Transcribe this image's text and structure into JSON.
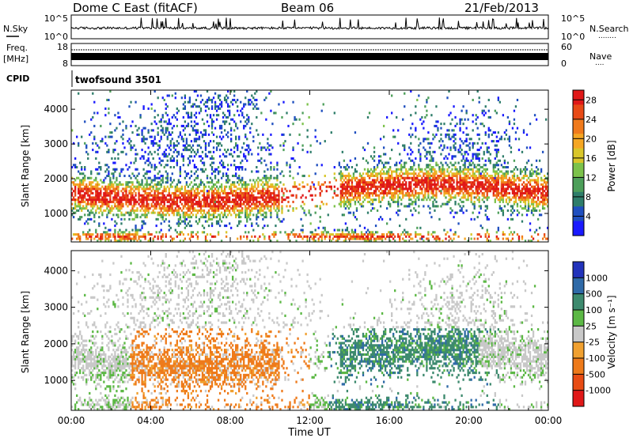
{
  "header": {
    "station": "Dome C East (fitACF)",
    "beam": "Beam 06",
    "date": "21/Feb/2013"
  },
  "labels": {
    "nsky": "N.Sky",
    "freq_line1": "Freq.",
    "freq_line2": "[MHz]",
    "cpid": "CPID",
    "nsearch": "N.Search",
    "nsearch_dots": "........",
    "nave": "Nave",
    "nave_dots": "....",
    "program": "twofsound 3501",
    "nsky_ticks": [
      "10^5",
      "10^0"
    ],
    "nsearch_ticks": [
      "10^5",
      "10^0"
    ],
    "freq_ticks": [
      "18",
      "8"
    ],
    "nave_ticks": [
      "60",
      "0"
    ]
  },
  "chart_data": [
    {
      "type": "heatmap",
      "name": "power",
      "ylabel": "Slant Range [km]",
      "xlabel": "",
      "x_ticks": [
        "00:00",
        "04:00",
        "08:00",
        "12:00",
        "16:00",
        "20:00",
        "00:00"
      ],
      "y_ticks": [
        1000,
        2000,
        3000,
        4000
      ],
      "ylim": [
        180,
        4550
      ],
      "xlim_hours": [
        0,
        24
      ],
      "colorbar": {
        "label": "Power [dB]",
        "ticks": [
          4,
          8,
          12,
          16,
          20,
          24,
          28
        ],
        "range": [
          0,
          30
        ],
        "colors": [
          "#1a1aff",
          "#1f4fbf",
          "#2e7d6a",
          "#4d9f5a",
          "#7cc24b",
          "#d9c62a",
          "#f5a623",
          "#f07a1c",
          "#e84a16",
          "#e01818"
        ]
      }
    },
    {
      "type": "heatmap",
      "name": "velocity",
      "ylabel": "Slant Range [km]",
      "xlabel": "Time UT",
      "x_ticks": [
        "00:00",
        "04:00",
        "08:00",
        "12:00",
        "16:00",
        "20:00",
        "00:00"
      ],
      "y_ticks": [
        1000,
        2000,
        3000,
        4000
      ],
      "ylim": [
        180,
        4550
      ],
      "xlim_hours": [
        0,
        24
      ],
      "colorbar": {
        "label": "Velocity [m s⁻¹]",
        "ticks": [
          1000,
          500,
          100,
          25,
          -25,
          -100,
          -500,
          -1000
        ],
        "colors": [
          "#2233bb",
          "#2f6aa8",
          "#3d8a6e",
          "#5cb845",
          "#c8c8c8",
          "#f0a030",
          "#ee7a1a",
          "#e84c14",
          "#e01818"
        ]
      }
    }
  ]
}
